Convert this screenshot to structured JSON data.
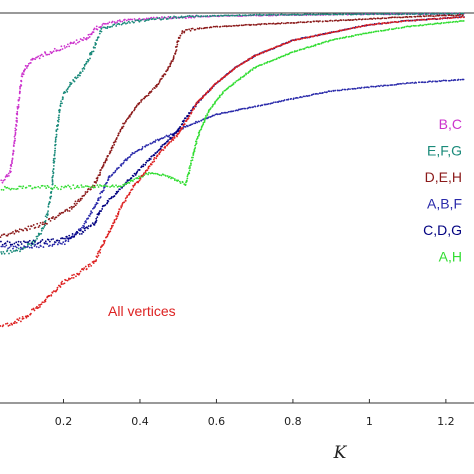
{
  "chart_data": {
    "type": "scatter",
    "title": "",
    "xlabel": "K",
    "ylabel": "",
    "xlim": [
      0,
      1.25
    ],
    "ylim": [
      0,
      1
    ],
    "grid": false,
    "legend_placement": "right",
    "x_ticks": [
      0.2,
      0.4,
      0.6,
      0.8,
      1,
      1.2
    ],
    "x_tick_labels": [
      "0.2",
      "0.4",
      "0.6",
      "0.8",
      "1",
      "1.2"
    ],
    "annotation": "All vertices",
    "series": [
      {
        "name": "B,C",
        "color": "#cc33cc",
        "x": [
          0.0,
          0.04,
          0.06,
          0.07,
          0.08,
          0.09,
          0.1,
          0.12,
          0.15,
          0.18,
          0.22,
          0.26,
          0.28,
          0.3,
          0.35,
          0.45,
          0.6,
          0.8,
          1.0,
          1.25
        ],
        "y": [
          0.56,
          0.57,
          0.59,
          0.65,
          0.75,
          0.83,
          0.86,
          0.88,
          0.895,
          0.905,
          0.92,
          0.935,
          0.955,
          0.97,
          0.98,
          0.987,
          0.992,
          0.995,
          0.997,
          0.998
        ]
      },
      {
        "name": "E,F,G",
        "color": "#1a8a7a",
        "x": [
          0.0,
          0.08,
          0.12,
          0.15,
          0.17,
          0.18,
          0.19,
          0.2,
          0.22,
          0.24,
          0.26,
          0.28,
          0.3,
          0.34,
          0.4,
          0.5,
          0.7,
          1.0,
          1.25
        ],
        "y": [
          0.38,
          0.39,
          0.41,
          0.45,
          0.55,
          0.68,
          0.75,
          0.79,
          0.82,
          0.84,
          0.87,
          0.91,
          0.96,
          0.97,
          0.98,
          0.99,
          0.995,
          0.997,
          0.998
        ]
      },
      {
        "name": "D,E,H",
        "color": "#8b1a1a",
        "x": [
          0.0,
          0.08,
          0.15,
          0.22,
          0.25,
          0.28,
          0.3,
          0.33,
          0.36,
          0.4,
          0.44,
          0.47,
          0.49,
          0.5,
          0.51,
          0.52,
          0.55,
          0.6,
          0.7,
          0.8,
          0.9,
          1.0,
          1.1,
          1.25
        ],
        "y": [
          0.42,
          0.44,
          0.46,
          0.5,
          0.53,
          0.56,
          0.6,
          0.66,
          0.72,
          0.77,
          0.81,
          0.85,
          0.89,
          0.93,
          0.95,
          0.955,
          0.96,
          0.965,
          0.97,
          0.975,
          0.98,
          0.985,
          0.99,
          0.995
        ]
      },
      {
        "name": "A,B,F",
        "color": "#2a2aaa",
        "x": [
          0.0,
          0.1,
          0.2,
          0.25,
          0.28,
          0.3,
          0.32,
          0.35,
          0.38,
          0.42,
          0.46,
          0.49,
          0.5,
          0.52,
          0.55,
          0.6,
          0.7,
          0.8,
          0.9,
          1.0,
          1.1,
          1.25
        ],
        "y": [
          0.4,
          0.4,
          0.41,
          0.45,
          0.5,
          0.54,
          0.58,
          0.61,
          0.64,
          0.66,
          0.68,
          0.69,
          0.7,
          0.71,
          0.72,
          0.74,
          0.76,
          0.78,
          0.8,
          0.81,
          0.82,
          0.83
        ]
      },
      {
        "name": "C,D,G",
        "color": "#000080",
        "x": [
          0.0,
          0.1,
          0.2,
          0.25,
          0.28,
          0.3,
          0.35,
          0.4,
          0.45,
          0.5,
          0.52,
          0.55,
          0.6,
          0.65,
          0.7,
          0.75,
          0.8,
          0.9,
          1.0,
          1.1,
          1.25
        ],
        "y": [
          0.41,
          0.41,
          0.42,
          0.44,
          0.46,
          0.5,
          0.55,
          0.6,
          0.65,
          0.7,
          0.73,
          0.77,
          0.82,
          0.86,
          0.89,
          0.91,
          0.93,
          0.95,
          0.97,
          0.98,
          0.99
        ]
      },
      {
        "name": "A,H",
        "color": "#33dd33",
        "x": [
          0.0,
          0.1,
          0.2,
          0.3,
          0.35,
          0.38,
          0.4,
          0.43,
          0.46,
          0.49,
          0.51,
          0.52,
          0.53,
          0.55,
          0.58,
          0.62,
          0.7,
          0.8,
          0.9,
          1.0,
          1.1,
          1.25
        ],
        "y": [
          0.55,
          0.552,
          0.553,
          0.555,
          0.556,
          0.57,
          0.58,
          0.59,
          0.585,
          0.575,
          0.565,
          0.56,
          0.6,
          0.68,
          0.75,
          0.8,
          0.86,
          0.9,
          0.93,
          0.95,
          0.965,
          0.98
        ]
      },
      {
        "name": "All vertices",
        "color": "#dd2222",
        "x": [
          0.0,
          0.02,
          0.06,
          0.1,
          0.15,
          0.2,
          0.25,
          0.28,
          0.3,
          0.32,
          0.35,
          0.38,
          0.42,
          0.45,
          0.48,
          0.5,
          0.52,
          0.55,
          0.6,
          0.65,
          0.7,
          0.75,
          0.8,
          0.9,
          1.0,
          1.1,
          1.25
        ],
        "y": [
          0.22,
          0.2,
          0.2,
          0.22,
          0.26,
          0.31,
          0.34,
          0.36,
          0.4,
          0.44,
          0.5,
          0.55,
          0.6,
          0.64,
          0.67,
          0.69,
          0.72,
          0.77,
          0.82,
          0.86,
          0.89,
          0.91,
          0.93,
          0.95,
          0.97,
          0.98,
          0.99
        ]
      }
    ]
  },
  "legend_order": [
    "B,C",
    "E,F,G",
    "D,E,H",
    "A,B,F",
    "C,D,G",
    "A,H"
  ]
}
